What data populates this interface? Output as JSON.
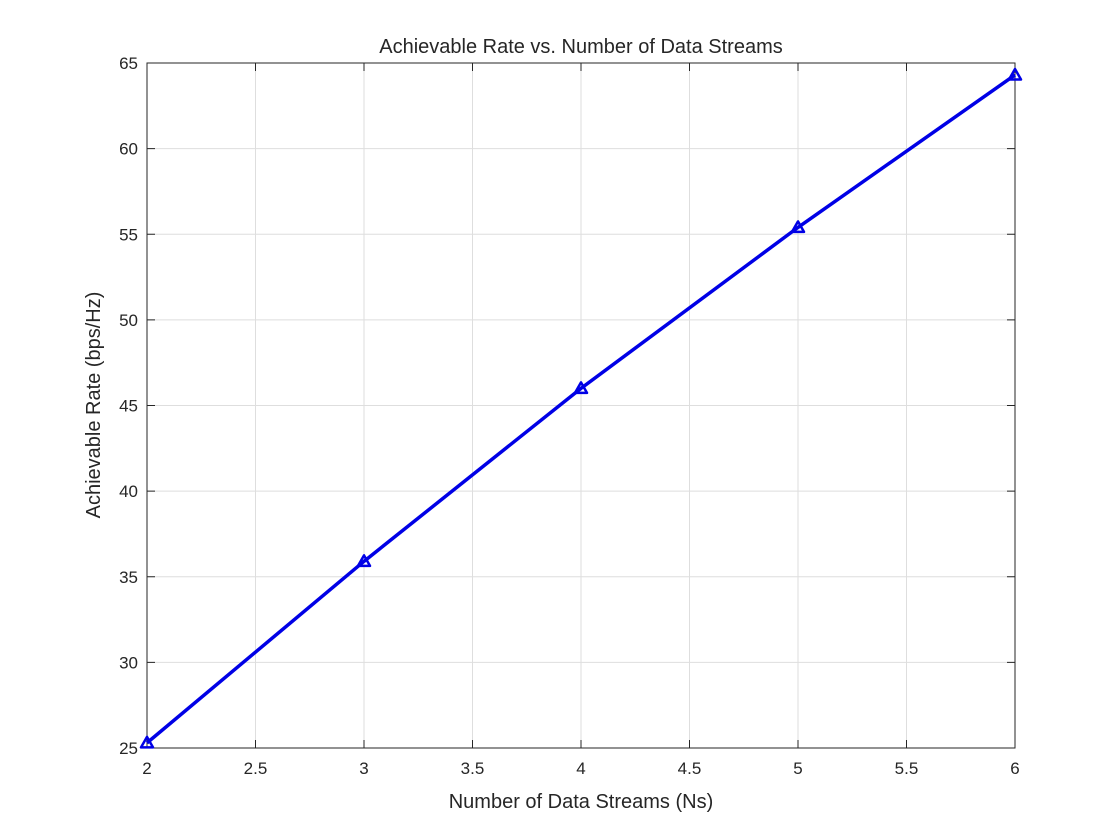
{
  "chart_data": {
    "type": "line",
    "title": "Achievable Rate vs. Number of Data Streams",
    "xlabel": "Number of Data Streams (Ns)",
    "ylabel": "Achievable Rate (bps/Hz)",
    "xlim": [
      2,
      6
    ],
    "ylim": [
      25,
      65
    ],
    "xticks": [
      2,
      2.5,
      3,
      3.5,
      4,
      4.5,
      5,
      5.5,
      6
    ],
    "xtick_labels": [
      "2",
      "2.5",
      "3",
      "3.5",
      "4",
      "4.5",
      "5",
      "5.5",
      "6"
    ],
    "yticks": [
      25,
      30,
      35,
      40,
      45,
      50,
      55,
      60,
      65
    ],
    "ytick_labels": [
      "25",
      "30",
      "35",
      "40",
      "45",
      "50",
      "55",
      "60",
      "65"
    ],
    "grid": true,
    "legend": "none",
    "series": [
      {
        "color": "#0000e6",
        "marker": "triangle-up",
        "x": [
          2,
          3,
          4,
          5,
          6
        ],
        "y": [
          25.3,
          35.9,
          46.0,
          55.4,
          64.3
        ]
      }
    ]
  }
}
